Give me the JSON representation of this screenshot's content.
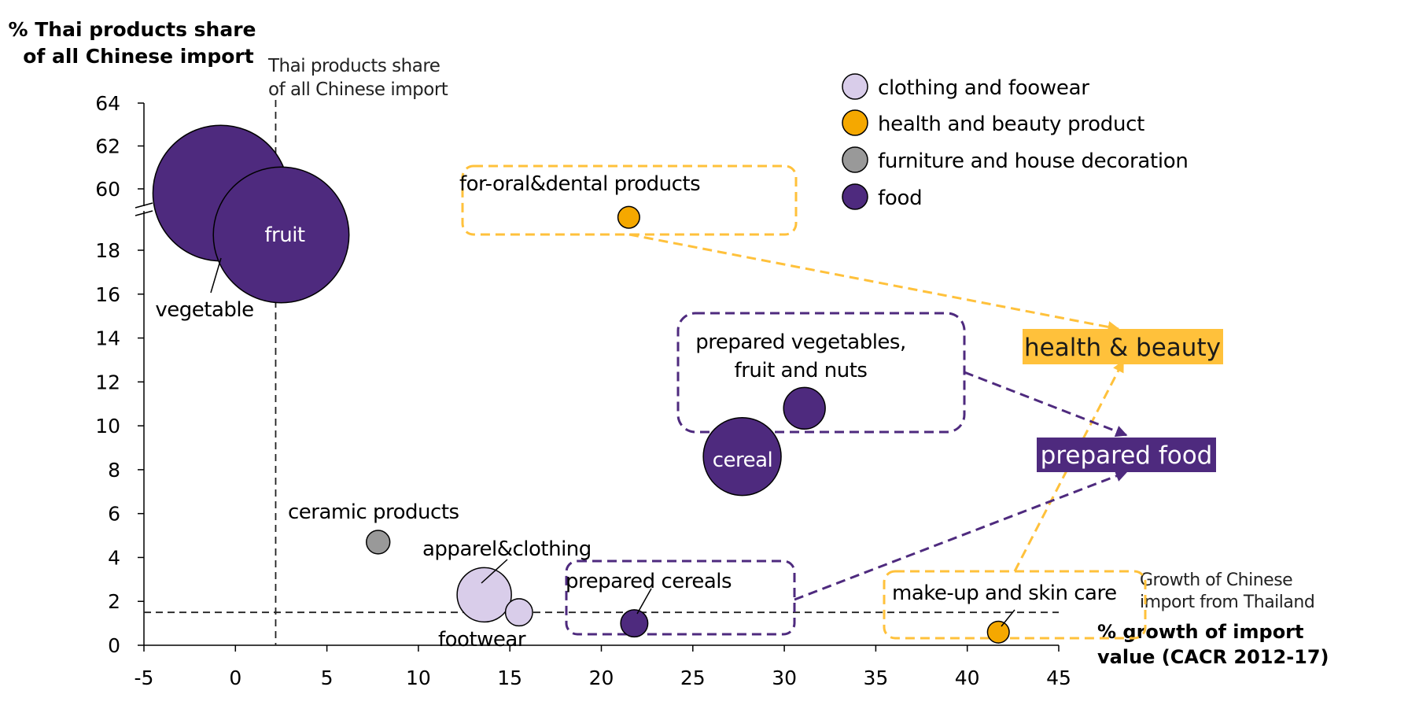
{
  "chart_data": {
    "type": "bubble",
    "title": "",
    "ylabel_line1": "% Thai products share",
    "ylabel_line2": "of all Chinese import",
    "xlabel_line1": "% growth of import",
    "xlabel_line2": "value (CACR 2012-17)",
    "xlim": [
      -5,
      45
    ],
    "xticks": [
      "-5",
      "0",
      "5",
      "10",
      "15",
      "20",
      "25",
      "30",
      "35",
      "40",
      "45"
    ],
    "ylim_lower": [
      0,
      19
    ],
    "yticks_lower": [
      "0",
      "2",
      "4",
      "6",
      "8",
      "10",
      "12",
      "14",
      "16",
      "18"
    ],
    "ylim_upper": [
      59,
      64
    ],
    "yticks_upper": [
      "60",
      "62",
      "64"
    ],
    "reference_lines": {
      "vertical_x": 2.2,
      "vertical_label_line1": "Thai products share",
      "vertical_label_line2": "of all  Chinese import",
      "horizontal_y": 1.5,
      "horizontal_label_line1": "Growth of Chinese",
      "horizontal_label_line2": "import from Thailand"
    },
    "legend": [
      {
        "label": "clothing and foowear",
        "color": "#d9cdea"
      },
      {
        "label": "health and beauty product",
        "color": "#f5a800"
      },
      {
        "label": "furniture and house decoration",
        "color": "#999999"
      },
      {
        "label": "food",
        "color": "#4e2a7e"
      }
    ],
    "points": [
      {
        "name": "vegetable",
        "x": -0.8,
        "y": 59.8,
        "category": "food",
        "size": 75
      },
      {
        "name": "fruit",
        "x": 2.5,
        "y": 18.7,
        "category": "food",
        "size": 75
      },
      {
        "name": "for-oral&dental products",
        "x": 21.5,
        "y": 19.5,
        "category": "health and beauty product",
        "size": 12
      },
      {
        "name": "prepared vegetables, fruit and nuts",
        "x": 31.1,
        "y": 10.8,
        "category": "food",
        "size": 23
      },
      {
        "name": "cereal",
        "x": 27.7,
        "y": 8.6,
        "category": "food",
        "size": 43
      },
      {
        "name": "ceramic products",
        "x": 7.8,
        "y": 4.7,
        "category": "furniture and house decoration",
        "size": 13
      },
      {
        "name": "apparel&clothing",
        "x": 13.6,
        "y": 2.3,
        "category": "clothing and foowear",
        "size": 30
      },
      {
        "name": "footwear",
        "x": 15.5,
        "y": 1.5,
        "category": "clothing and foowear",
        "size": 15
      },
      {
        "name": "prepared cereals",
        "x": 21.8,
        "y": 1.0,
        "category": "food",
        "size": 15
      },
      {
        "name": "make-up and skin care",
        "x": 41.7,
        "y": 0.6,
        "category": "health and beauty product",
        "size": 12
      }
    ],
    "bubble_labels": {
      "vegetable": "vegetable",
      "fruit": "fruit",
      "oral": "for-oral&dental products",
      "prep_veg_line1": "prepared vegetables,",
      "prep_veg_line2": "fruit and nuts",
      "cereal": "cereal",
      "ceramic": "ceramic products",
      "apparel": "apparel&clothing",
      "footwear": "footwear",
      "prep_cereals": "prepared cereals",
      "makeup": "make-up and skin care"
    },
    "groups": [
      {
        "label": "health & beauty",
        "color": "#ffc13b",
        "text_color": "#1a1a1a"
      },
      {
        "label": "prepared food",
        "color": "#4e2a7e",
        "text_color": "#ffffff"
      }
    ]
  }
}
